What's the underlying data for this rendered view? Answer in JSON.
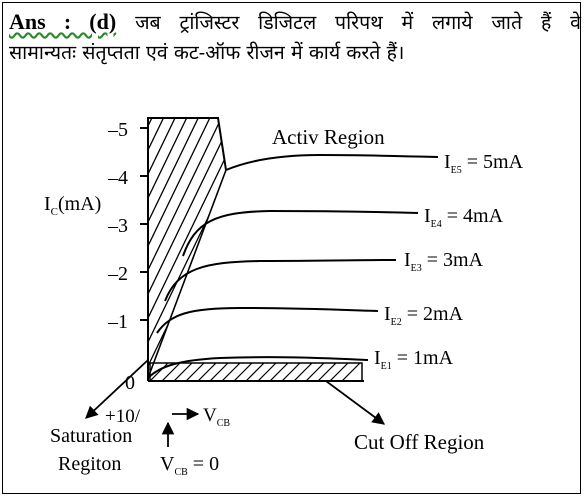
{
  "answer": {
    "prefix": "Ans : (d)",
    "line1": "जब ट्रांजिस्टर डिजिटल परिपथ में लगाये जाते हैं वे",
    "line2": "सामान्यतः संतृप्तता एवं कट-ऑफ रीजन में कार्य करते हैं।"
  },
  "diagram": {
    "y_axis_label_main": "I",
    "y_axis_label_sub": "C",
    "y_axis_label_unit": "(mA)",
    "y_ticks": [
      "0",
      "–1",
      "–2",
      "–3",
      "–4",
      "–5"
    ],
    "active_region_label": "Activ Region",
    "curves": [
      {
        "sub": "E5",
        "value": "= 5mA"
      },
      {
        "sub": "E4",
        "value": "= 4mA"
      },
      {
        "sub": "E3",
        "value": "= 3mA"
      },
      {
        "sub": "E2",
        "value": "= 2mA"
      },
      {
        "sub": "E1",
        "value": "= 1mA"
      }
    ],
    "saturation_label_line1": "+10/",
    "saturation_label_line2": "Saturation",
    "saturation_label_line3": "Regiton",
    "vcb_arrow_label_main": "V",
    "vcb_arrow_label_sub": "CB",
    "vcb_zero_label_main": "V",
    "vcb_zero_label_sub": "CB",
    "vcb_zero_label_value": "= 0",
    "cutoff_label": "Cut Off Region"
  }
}
